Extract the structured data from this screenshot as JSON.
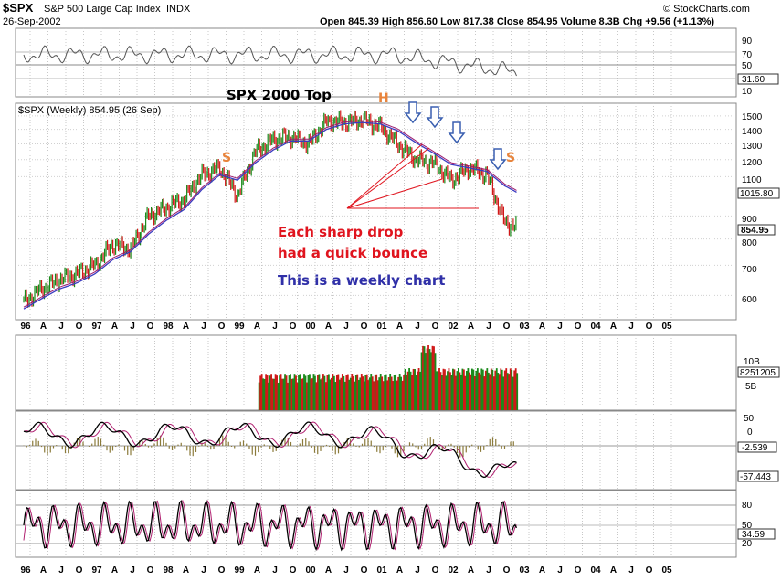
{
  "header": {
    "symbol": "$SPX",
    "name": "S&P 500 Large Cap Index",
    "exchange": "INDX",
    "date": "26-Sep-2002",
    "brand": "© StockCharts.com",
    "quote": "Open 845.39  High 856.60  Low 817.38  Close 854.95  Volume 8.3B  Chg +9.56 (+1.13%)",
    "price_label": "$SPX (Weekly) 854.95 (26 Sep)"
  },
  "annotations": {
    "top_title": "SPX 2000 Top",
    "shoulder_left": "S",
    "head": "H",
    "shoulder_right": "S",
    "drop_line1": "Each sharp drop",
    "drop_line2": "had a quick bounce",
    "weekly_note": "This is a weekly chart",
    "colors": {
      "red": "#e0141e",
      "blue": "#3030a8",
      "orange": "#e8843c",
      "arrow": "#3a5fb0"
    }
  },
  "x_axis_labels": [
    "96",
    "A",
    "J",
    "O",
    "97",
    "A",
    "J",
    "O",
    "98",
    "A",
    "J",
    "O",
    "99",
    "A",
    "J",
    "O",
    "00",
    "A",
    "J",
    "O",
    "01",
    "A",
    "J",
    "O",
    "02",
    "A",
    "J",
    "O",
    "03",
    "A",
    "J",
    "O",
    "04",
    "A",
    "J",
    "O",
    "05"
  ],
  "rsi_panel": {
    "ticks": [
      "90",
      "70",
      "50",
      "30",
      "10"
    ],
    "value_label": "31.60"
  },
  "price_panel": {
    "ticks": [
      "1500",
      "1400",
      "1300",
      "1200",
      "1100",
      "1000",
      "900",
      "800",
      "700",
      "600"
    ],
    "close_label": "854.95",
    "ma_label": "1015.80"
  },
  "volume_panel": {
    "ticks": [
      "10B",
      "5B"
    ],
    "value_label": "8251205"
  },
  "macd_panel": {
    "ticks": [
      "50",
      "0"
    ],
    "histogram_label": "-2.539",
    "macd_label": "-57.443"
  },
  "stoch_panel": {
    "ticks": [
      "80",
      "50",
      "20"
    ],
    "value_label": "34.59"
  },
  "chart_data": {
    "type": "line",
    "title": "$SPX (Weekly)",
    "y_scale": "log",
    "ylim": [
      530,
      1600
    ],
    "x": [
      "1995-10",
      "1996-01",
      "1996-04",
      "1996-07",
      "1996-10",
      "1997-01",
      "1997-04",
      "1997-07",
      "1997-10",
      "1998-01",
      "1998-04",
      "1998-07",
      "1998-10",
      "1999-01",
      "1999-04",
      "1999-07",
      "1999-10",
      "2000-01",
      "2000-04",
      "2000-07",
      "2000-10",
      "2001-01",
      "2001-04",
      "2001-07",
      "2001-10",
      "2002-01",
      "2002-04",
      "2002-07",
      "2002-09"
    ],
    "series": [
      {
        "name": "$SPX",
        "values": [
          580,
          620,
          650,
          670,
          700,
          780,
          760,
          900,
          940,
          980,
          1110,
          1150,
          1000,
          1250,
          1330,
          1350,
          1300,
          1460,
          1450,
          1470,
          1420,
          1300,
          1200,
          1180,
          1080,
          1150,
          1110,
          870,
          855
        ]
      },
      {
        "values": [
          560,
          590,
          620,
          640,
          670,
          720,
          750,
          820,
          880,
          930,
          1030,
          1110,
          1080,
          1180,
          1260,
          1320,
          1320,
          1400,
          1440,
          1450,
          1440,
          1390,
          1310,
          1240,
          1170,
          1150,
          1130,
          1050,
          1016
        ]
      }
    ]
  }
}
